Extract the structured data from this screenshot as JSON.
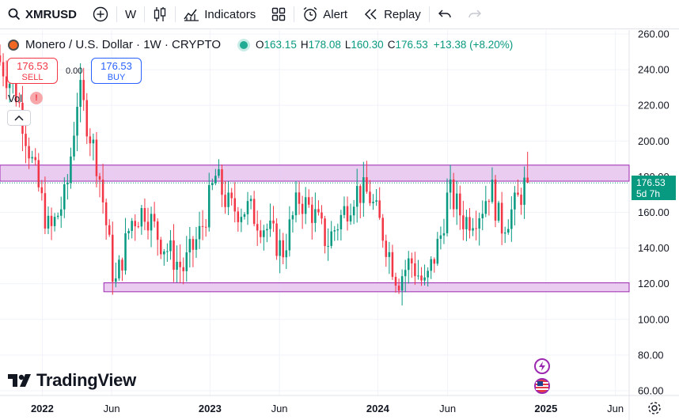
{
  "toolbar": {
    "symbol": "XMRUSD",
    "interval": "W",
    "indicators_label": "Indicators",
    "alert_label": "Alert",
    "replay_label": "Replay"
  },
  "legend": {
    "title": "Monero / U.S. Dollar · 1W · CRYPTO",
    "o_label": "O",
    "o": "163.15",
    "h_label": "H",
    "h": "178.08",
    "l_label": "L",
    "l": "160.30",
    "c_label": "C",
    "c": "176.53",
    "change": "+13.38 (+8.20%)"
  },
  "trade": {
    "sell_price": "176.53",
    "sell_label": "SELL",
    "spread": "0.00",
    "buy_price": "176.53",
    "buy_label": "BUY"
  },
  "volume_label": "Vol",
  "volume_warning": "!",
  "price_badge": {
    "price": "176.53",
    "countdown": "5d 7h"
  },
  "logo_text": "TradingView",
  "colors": {
    "up": "#089981",
    "down": "#f23645",
    "zone_fill": "#e6c3ee",
    "zone_border": "#9c27b0",
    "accent": "#2962ff"
  },
  "chart_data": {
    "type": "candlestick",
    "title": "",
    "xlabel": "",
    "ylabel": "",
    "ylim": [
      57,
      265
    ],
    "y_ticks": [
      60,
      80,
      100,
      120,
      140,
      160,
      180,
      200,
      220,
      240,
      260
    ],
    "y_tick_labels": [
      "60.00",
      "80.00",
      "100.00",
      "120.00",
      "140.00",
      "160.00",
      "180.00",
      "200.00",
      "220.00",
      "240.00",
      "260.00"
    ],
    "x_ticks": [
      {
        "label": "2022",
        "date": "2022-01-01"
      },
      {
        "label": "Jun",
        "date": "2022-06-01"
      },
      {
        "label": "2023",
        "date": "2023-01-01"
      },
      {
        "label": "Jun",
        "date": "2023-06-01"
      },
      {
        "label": "2024",
        "date": "2024-01-01"
      },
      {
        "label": "Jun",
        "date": "2024-06-01"
      },
      {
        "label": "2025",
        "date": "2025-01-01"
      },
      {
        "label": "Jun",
        "date": "2025-06-01"
      }
    ],
    "xlim": [
      "2021-10-01",
      "2025-07-01"
    ],
    "zones": [
      {
        "from": 177.5,
        "to": 186.5
      },
      {
        "from": 115.5,
        "to": 120.5
      }
    ],
    "last_price": 176.53,
    "anchors": [
      {
        "date": "2021-10-01",
        "price": 248
      },
      {
        "date": "2021-11-15",
        "price": 225
      },
      {
        "date": "2021-12-15",
        "price": 190
      },
      {
        "date": "2022-01-24",
        "price": 148
      },
      {
        "date": "2022-03-01",
        "price": 170
      },
      {
        "date": "2022-03-28",
        "price": 230
      },
      {
        "date": "2022-05-10",
        "price": 185
      },
      {
        "date": "2022-06-15",
        "price": 118
      },
      {
        "date": "2022-07-20",
        "price": 155
      },
      {
        "date": "2022-08-20",
        "price": 162
      },
      {
        "date": "2022-09-20",
        "price": 145
      },
      {
        "date": "2022-11-10",
        "price": 128
      },
      {
        "date": "2022-12-20",
        "price": 150
      },
      {
        "date": "2023-01-20",
        "price": 180
      },
      {
        "date": "2023-02-20",
        "price": 162
      },
      {
        "date": "2023-04-01",
        "price": 162
      },
      {
        "date": "2023-05-15",
        "price": 150
      },
      {
        "date": "2023-06-15",
        "price": 138
      },
      {
        "date": "2023-07-20",
        "price": 168
      },
      {
        "date": "2023-08-20",
        "price": 160
      },
      {
        "date": "2023-09-20",
        "price": 143
      },
      {
        "date": "2023-11-20",
        "price": 172
      },
      {
        "date": "2023-12-20",
        "price": 170
      },
      {
        "date": "2024-01-20",
        "price": 148
      },
      {
        "date": "2024-02-20",
        "price": 122
      },
      {
        "date": "2024-03-20",
        "price": 133
      },
      {
        "date": "2024-04-20",
        "price": 118
      },
      {
        "date": "2024-05-25",
        "price": 148
      },
      {
        "date": "2024-06-10",
        "price": 172
      },
      {
        "date": "2024-07-15",
        "price": 155
      },
      {
        "date": "2024-08-20",
        "price": 162
      },
      {
        "date": "2024-09-10",
        "price": 175
      },
      {
        "date": "2024-10-01",
        "price": 152
      },
      {
        "date": "2024-11-01",
        "price": 163
      },
      {
        "date": "2024-11-25",
        "price": 176.53
      }
    ]
  }
}
